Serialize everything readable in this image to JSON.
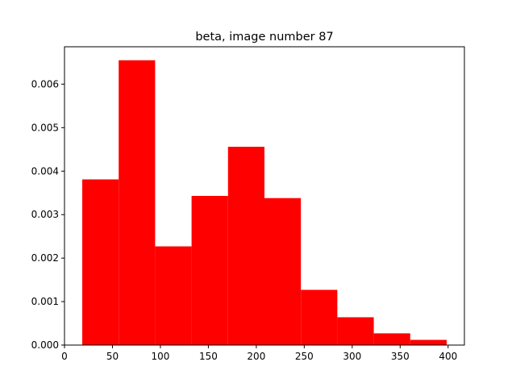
{
  "chart_data": {
    "type": "bar",
    "title": "beta, image number 87",
    "xlabel": "",
    "ylabel": "",
    "xlim": [
      0,
      417
    ],
    "ylim": [
      0,
      0.00686
    ],
    "xticks": [
      0,
      50,
      100,
      150,
      200,
      250,
      300,
      350,
      400
    ],
    "yticks": [
      0.0,
      0.001,
      0.002,
      0.003,
      0.004,
      0.005,
      0.006
    ],
    "ytick_labels": [
      "0.000",
      "0.001",
      "0.002",
      "0.003",
      "0.004",
      "0.005",
      "0.006"
    ],
    "grid": false,
    "bins": [
      {
        "x0": 18.5,
        "x1": 56.5,
        "value": 0.00381
      },
      {
        "x0": 56.5,
        "x1": 94.5,
        "value": 0.00655
      },
      {
        "x0": 94.5,
        "x1": 132.5,
        "value": 0.00227
      },
      {
        "x0": 132.5,
        "x1": 170.5,
        "value": 0.00343
      },
      {
        "x0": 170.5,
        "x1": 208.5,
        "value": 0.00456
      },
      {
        "x0": 208.5,
        "x1": 246.5,
        "value": 0.00338
      },
      {
        "x0": 246.5,
        "x1": 284.5,
        "value": 0.00127
      },
      {
        "x0": 284.5,
        "x1": 322.5,
        "value": 0.00064
      },
      {
        "x0": 322.5,
        "x1": 360.5,
        "value": 0.00027
      },
      {
        "x0": 360.5,
        "x1": 398.5,
        "value": 0.00012
      }
    ],
    "colors": {
      "bar": "#ff0000",
      "axes": "#000000",
      "background": "#ffffff"
    }
  }
}
